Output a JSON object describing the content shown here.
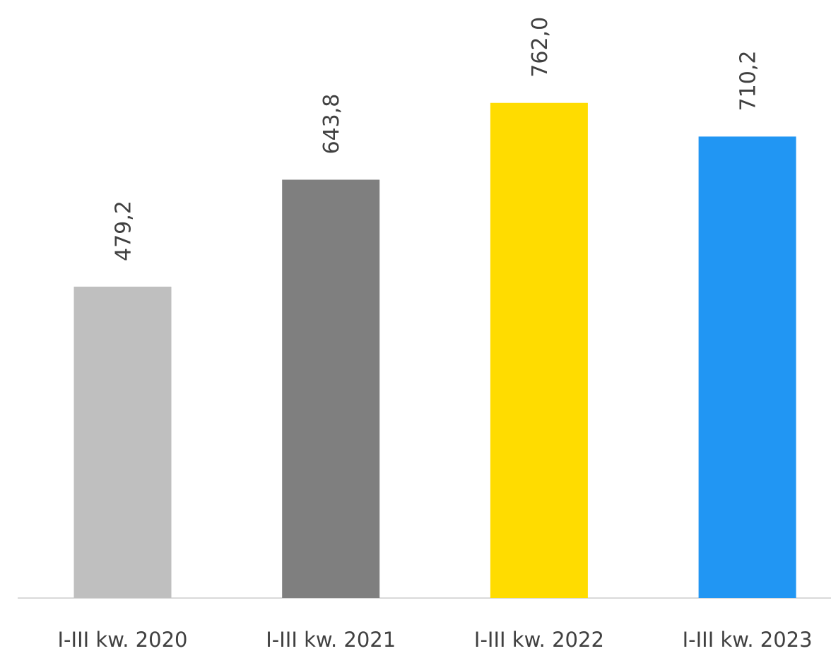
{
  "chart_data": {
    "type": "bar",
    "categories": [
      "I-III kw. 2020",
      "I-III kw. 2021",
      "I-III kw. 2022",
      "I-III kw. 2023"
    ],
    "values": [
      479.2,
      643.8,
      762.0,
      710.2
    ],
    "value_labels": [
      "479,2",
      "643,8",
      "762,0",
      "710,2"
    ],
    "colors": [
      "#bfbfbf",
      "#7f7f7f",
      "#ffdc00",
      "#2196f3"
    ]
  }
}
